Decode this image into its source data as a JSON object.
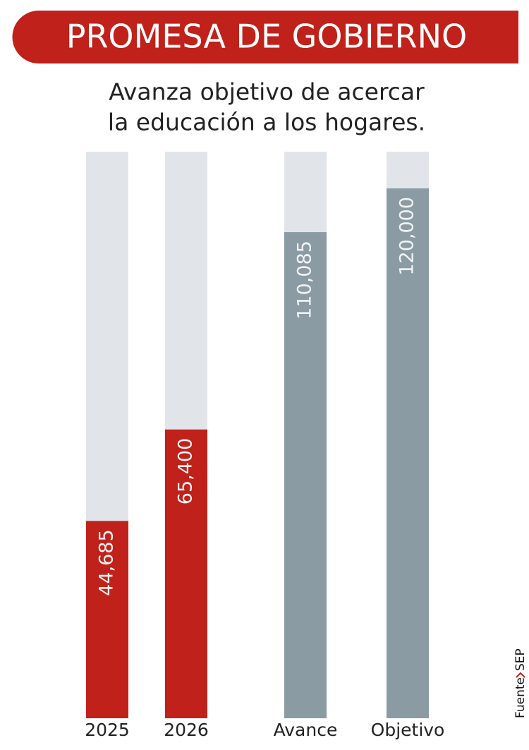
{
  "chart_data": {
    "type": "bar",
    "title": "PROMESA DE GOBIERNO",
    "subtitle": [
      "Avanza objetivo de acercar",
      "la educación a los hogares."
    ],
    "categories": [
      "2025",
      "2026",
      "Avance",
      "Objetivo"
    ],
    "values": [
      44685,
      65400,
      110085,
      120000
    ],
    "value_labels": [
      "44,685",
      "65,400",
      "110,085",
      "120,000"
    ],
    "colors": [
      "#c0211a",
      "#c0211a",
      "#8a9ba4",
      "#8a9ba4"
    ],
    "source_label": "Fuente",
    "source": "SEP"
  }
}
